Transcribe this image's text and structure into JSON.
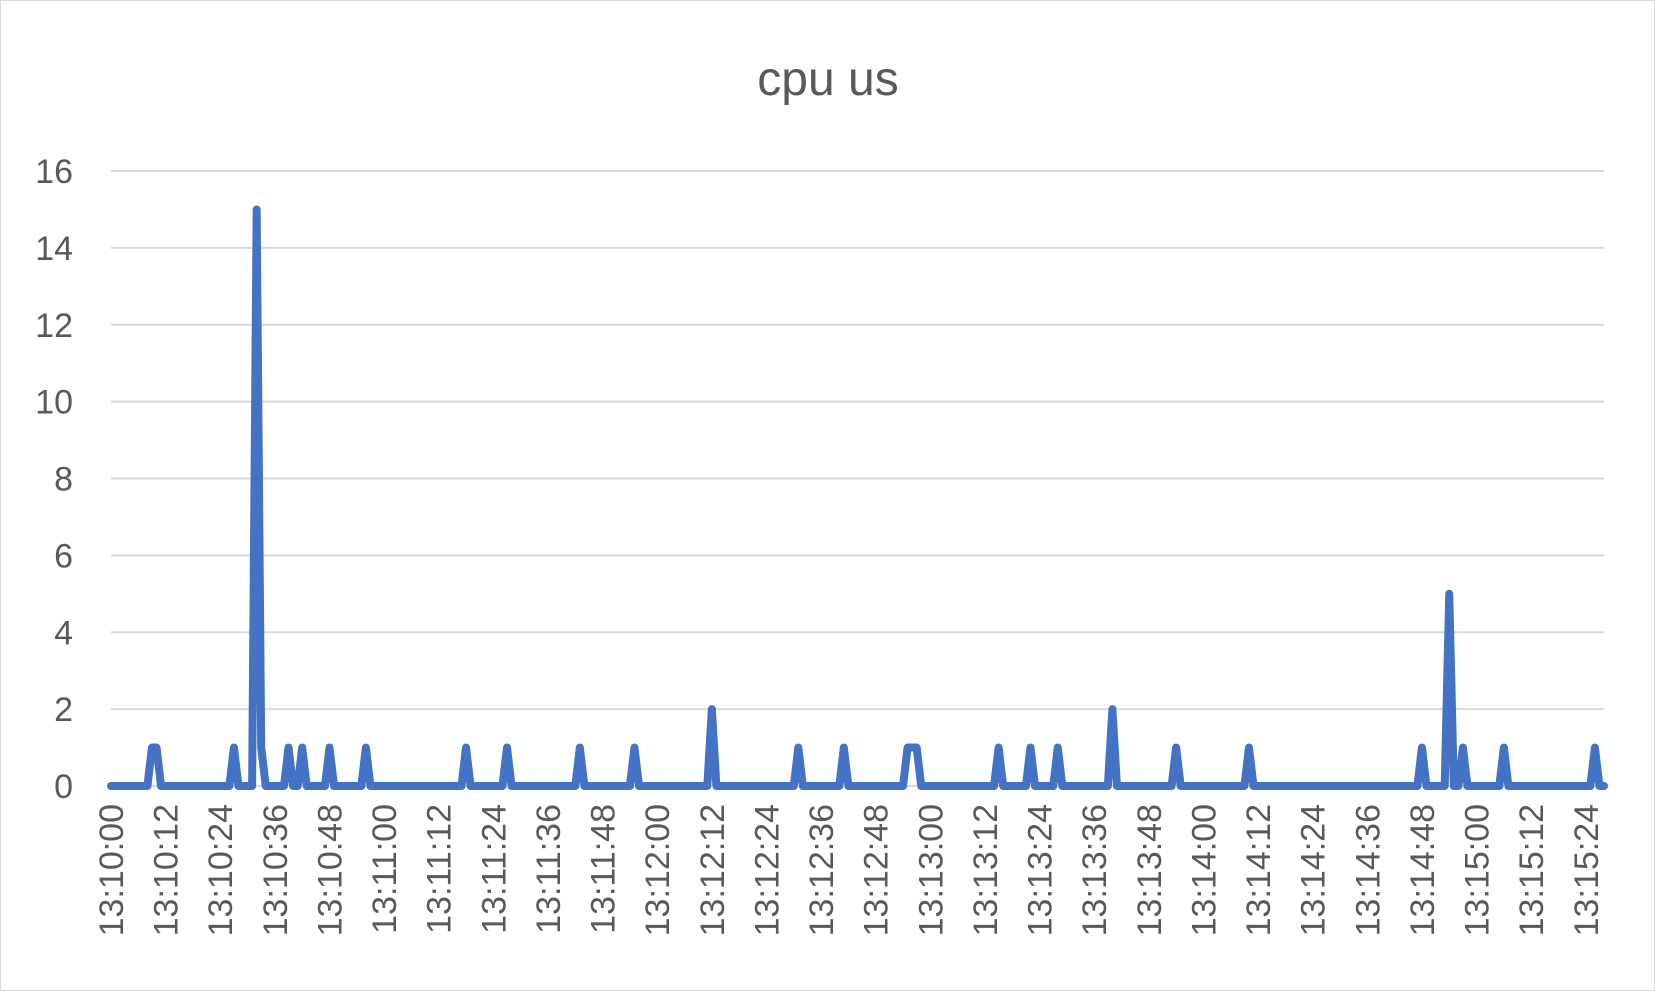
{
  "chart_data": {
    "type": "line",
    "title": "cpu us",
    "xlabel": "",
    "ylabel": "",
    "ylim": [
      0,
      16
    ],
    "yticks": [
      0,
      2,
      4,
      6,
      8,
      10,
      12,
      14,
      16
    ],
    "grid": true,
    "legend": "none",
    "x_start": "13:10:00",
    "x_end": "13:15:28",
    "x_step_seconds": 1,
    "xtick_labels": [
      "13:10:00",
      "13:10:12",
      "13:10:24",
      "13:10:36",
      "13:10:48",
      "13:11:00",
      "13:11:12",
      "13:11:24",
      "13:11:36",
      "13:11:48",
      "13:12:00",
      "13:12:12",
      "13:12:24",
      "13:12:36",
      "13:12:48",
      "13:13:00",
      "13:13:12",
      "13:13:24",
      "13:13:36",
      "13:13:48",
      "13:14:00",
      "13:14:12",
      "13:14:24",
      "13:14:36",
      "13:14:48",
      "13:15:00",
      "13:15:12",
      "13:15:24"
    ],
    "series": [
      {
        "color": "#4472c4",
        "nonzero_points": [
          {
            "x": "13:10:09",
            "y": 1
          },
          {
            "x": "13:10:10",
            "y": 1
          },
          {
            "x": "13:10:27",
            "y": 1
          },
          {
            "x": "13:10:32",
            "y": 15
          },
          {
            "x": "13:10:33",
            "y": 1
          },
          {
            "x": "13:10:39",
            "y": 1
          },
          {
            "x": "13:10:42",
            "y": 1
          },
          {
            "x": "13:10:48",
            "y": 1
          },
          {
            "x": "13:10:56",
            "y": 1
          },
          {
            "x": "13:11:18",
            "y": 1
          },
          {
            "x": "13:11:27",
            "y": 1
          },
          {
            "x": "13:11:43",
            "y": 1
          },
          {
            "x": "13:11:55",
            "y": 1
          },
          {
            "x": "13:12:12",
            "y": 2
          },
          {
            "x": "13:12:31",
            "y": 1
          },
          {
            "x": "13:12:41",
            "y": 1
          },
          {
            "x": "13:12:55",
            "y": 1
          },
          {
            "x": "13:12:56",
            "y": 1
          },
          {
            "x": "13:12:57",
            "y": 1
          },
          {
            "x": "13:13:15",
            "y": 1
          },
          {
            "x": "13:13:22",
            "y": 1
          },
          {
            "x": "13:13:28",
            "y": 1
          },
          {
            "x": "13:13:40",
            "y": 2
          },
          {
            "x": "13:13:54",
            "y": 1
          },
          {
            "x": "13:14:10",
            "y": 1
          },
          {
            "x": "13:14:48",
            "y": 1
          },
          {
            "x": "13:14:54",
            "y": 5
          },
          {
            "x": "13:14:57",
            "y": 1
          },
          {
            "x": "13:15:06",
            "y": 1
          },
          {
            "x": "13:15:26",
            "y": 1
          }
        ],
        "default_y": 0
      }
    ]
  }
}
